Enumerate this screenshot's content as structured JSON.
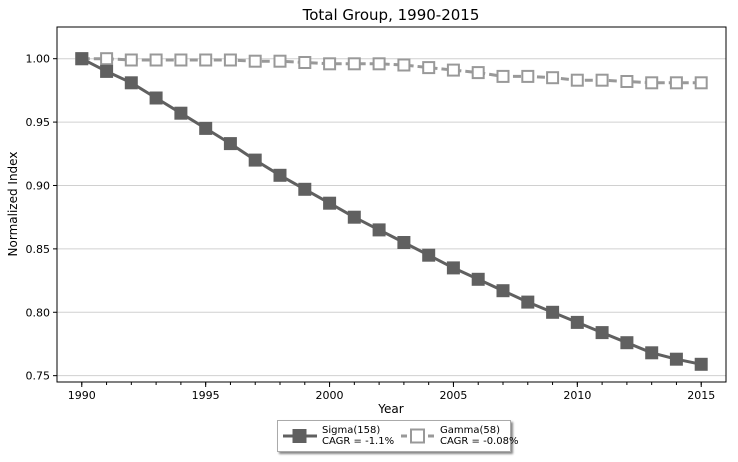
{
  "chart_data": {
    "type": "line",
    "title": "Total Group, 1990-2015",
    "xlabel": "Year",
    "ylabel": "Normalized Index",
    "xlim": [
      1989,
      2016
    ],
    "ylim": [
      0.745,
      1.025
    ],
    "xticks": [
      "1990",
      "1995",
      "2000",
      "2005",
      "2010",
      "2015"
    ],
    "yticks": [
      "0.75",
      "0.80",
      "0.85",
      "0.90",
      "0.95",
      "1.00"
    ],
    "grid": "horizontal",
    "legend_position": "bottom-center",
    "x": [
      1990,
      1991,
      1992,
      1993,
      1994,
      1995,
      1996,
      1997,
      1998,
      1999,
      2000,
      2001,
      2002,
      2003,
      2004,
      2005,
      2006,
      2007,
      2008,
      2009,
      2010,
      2011,
      2012,
      2013,
      2014,
      2015
    ],
    "series": [
      {
        "name": "Sigma(158)",
        "legend_line2": "CAGR = -1.1%",
        "color": "#606060",
        "line_style": "solid",
        "marker": "filled-square",
        "values": [
          1.0,
          0.99,
          0.981,
          0.969,
          0.957,
          0.945,
          0.933,
          0.92,
          0.908,
          0.897,
          0.886,
          0.875,
          0.865,
          0.855,
          0.845,
          0.835,
          0.826,
          0.817,
          0.808,
          0.8,
          0.792,
          0.784,
          0.776,
          0.768,
          0.763,
          0.759
        ]
      },
      {
        "name": "Gamma(58)",
        "legend_line2": "CAGR = -0.08%",
        "color": "#999999",
        "line_style": "dashed",
        "marker": "hollow-square",
        "values": [
          1.0,
          1.0,
          0.999,
          0.999,
          0.999,
          0.999,
          0.999,
          0.998,
          0.998,
          0.997,
          0.996,
          0.996,
          0.996,
          0.995,
          0.993,
          0.991,
          0.989,
          0.986,
          0.986,
          0.985,
          0.983,
          0.983,
          0.982,
          0.981,
          0.981,
          0.981
        ]
      }
    ]
  }
}
